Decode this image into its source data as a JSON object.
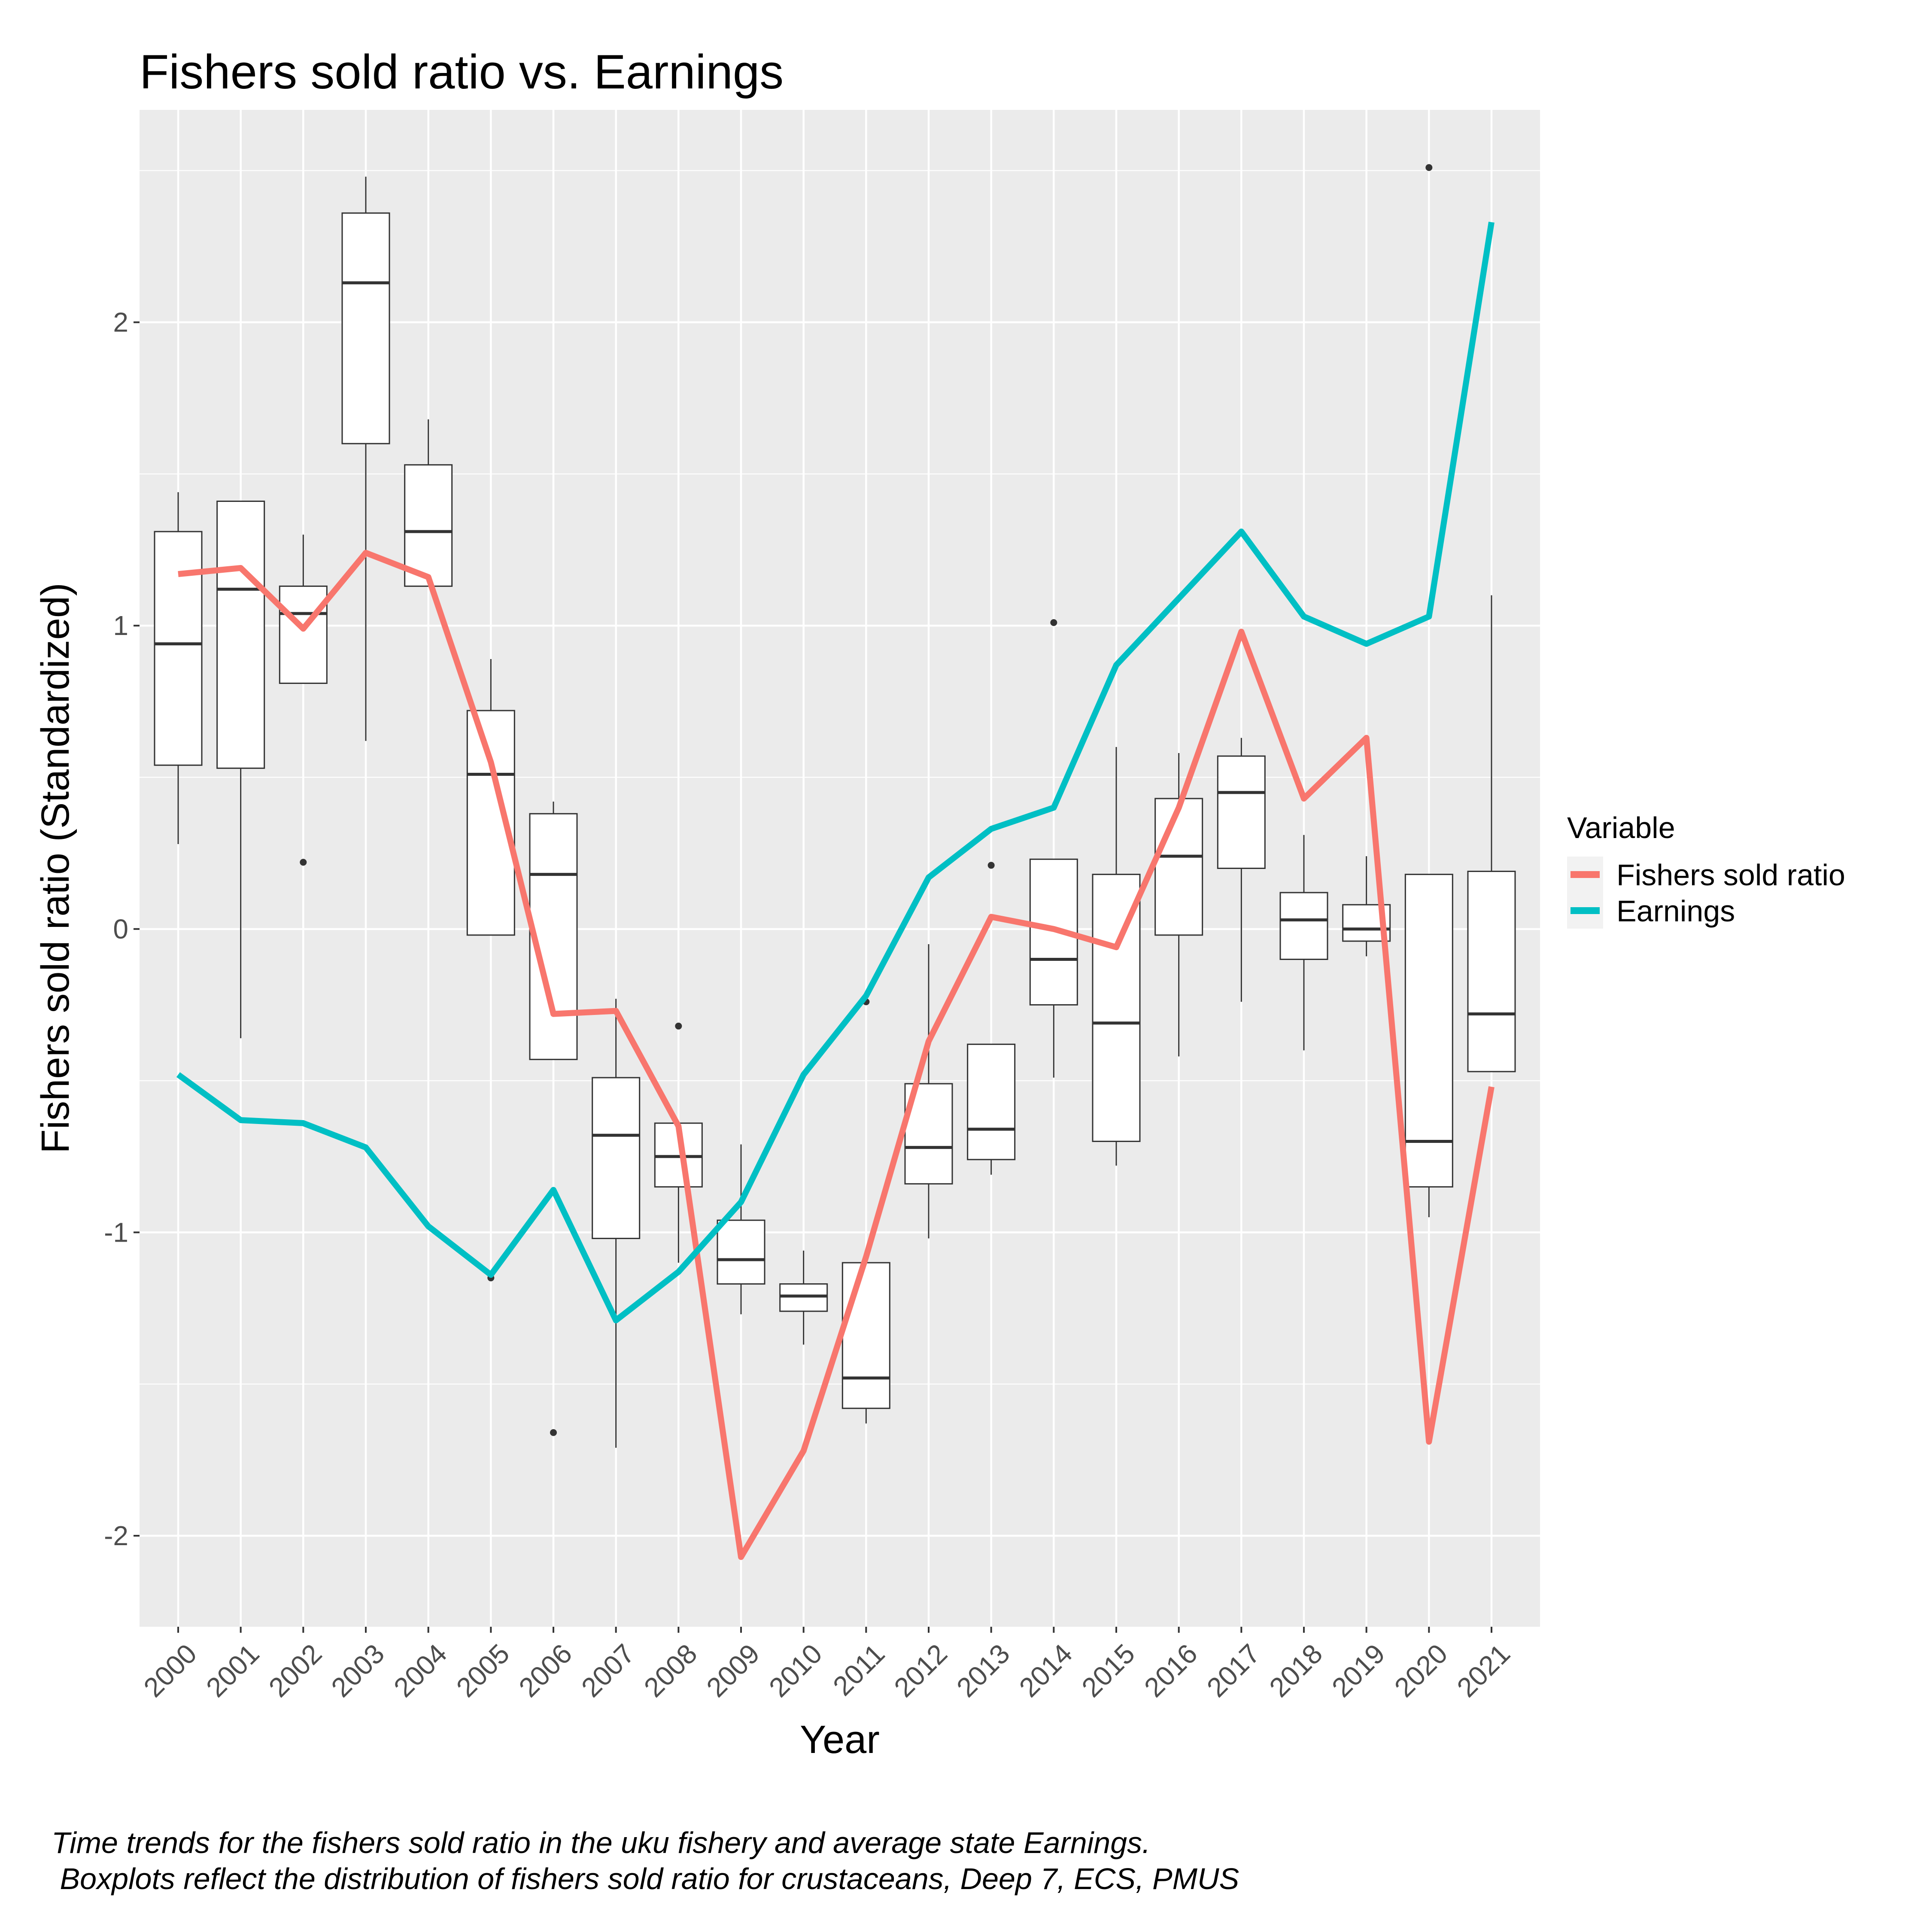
{
  "chart_data": {
    "type": "boxplot+line",
    "title": "Fishers sold ratio vs. Earnings",
    "xlabel": "Year",
    "ylabel": "Fishers sold ratio (Standardized)",
    "ylim": [
      -2.3,
      2.7
    ],
    "yticks": [
      -2,
      -1,
      0,
      1,
      2
    ],
    "ytick_labels": [
      "-2",
      "-1",
      "0",
      "1",
      "2"
    ],
    "categories": [
      "2000",
      "2001",
      "2002",
      "2003",
      "2004",
      "2005",
      "2006",
      "2007",
      "2008",
      "2009",
      "2010",
      "2011",
      "2012",
      "2013",
      "2014",
      "2015",
      "2016",
      "2017",
      "2018",
      "2019",
      "2020",
      "2021"
    ],
    "grid": true,
    "legend": {
      "title": "Variable",
      "placement": "right",
      "entries": [
        {
          "label": "Fishers sold ratio",
          "color": "#F8766D"
        },
        {
          "label": "Earnings",
          "color": "#00BFC4"
        }
      ]
    },
    "series": [
      {
        "name": "Fishers sold ratio",
        "color": "#F8766D",
        "values": [
          1.17,
          1.19,
          0.99,
          1.24,
          1.16,
          0.55,
          -0.28,
          -0.27,
          -0.65,
          -2.07,
          -1.72,
          -1.08,
          -0.37,
          0.04,
          0.0,
          -0.06,
          0.4,
          0.98,
          0.43,
          0.63,
          -1.69,
          -0.52
        ]
      },
      {
        "name": "Earnings",
        "color": "#00BFC4",
        "values": [
          -0.48,
          -0.63,
          -0.64,
          -0.72,
          -0.98,
          -1.14,
          -0.86,
          -1.29,
          -1.13,
          -0.9,
          -0.48,
          -0.22,
          0.17,
          0.33,
          0.4,
          0.87,
          1.09,
          1.31,
          1.03,
          0.94,
          1.03,
          2.33
        ]
      }
    ],
    "boxes": [
      {
        "year": "2000",
        "min": 0.28,
        "q1": 0.54,
        "median": 0.94,
        "q3": 1.31,
        "max": 1.44,
        "outliers": []
      },
      {
        "year": "2001",
        "min": -0.36,
        "q1": 0.53,
        "median": 1.12,
        "q3": 1.41,
        "max": 1.41,
        "outliers": []
      },
      {
        "year": "2002",
        "min": 0.81,
        "q1": 0.81,
        "median": 1.04,
        "q3": 1.13,
        "max": 1.3,
        "outliers": [
          0.22
        ]
      },
      {
        "year": "2003",
        "min": 0.62,
        "q1": 1.6,
        "median": 2.13,
        "q3": 2.36,
        "max": 2.48,
        "outliers": []
      },
      {
        "year": "2004",
        "min": 1.13,
        "q1": 1.13,
        "median": 1.31,
        "q3": 1.53,
        "max": 1.68,
        "outliers": []
      },
      {
        "year": "2005",
        "min": -0.02,
        "q1": -0.02,
        "median": 0.51,
        "q3": 0.72,
        "max": 0.89,
        "outliers": [
          -1.15
        ]
      },
      {
        "year": "2006",
        "min": -0.43,
        "q1": -0.43,
        "median": 0.18,
        "q3": 0.38,
        "max": 0.42,
        "outliers": [
          -1.66
        ]
      },
      {
        "year": "2007",
        "min": -1.71,
        "q1": -1.02,
        "median": -0.68,
        "q3": -0.49,
        "max": -0.23,
        "outliers": []
      },
      {
        "year": "2008",
        "min": -1.1,
        "q1": -0.85,
        "median": -0.75,
        "q3": -0.64,
        "max": -0.64,
        "outliers": [
          -0.32
        ]
      },
      {
        "year": "2009",
        "min": -1.27,
        "q1": -1.17,
        "median": -1.09,
        "q3": -0.96,
        "max": -0.71,
        "outliers": []
      },
      {
        "year": "2010",
        "min": -1.37,
        "q1": -1.26,
        "median": -1.21,
        "q3": -1.17,
        "max": -1.06,
        "outliers": []
      },
      {
        "year": "2011",
        "min": -1.63,
        "q1": -1.58,
        "median": -1.48,
        "q3": -1.1,
        "max": -1.1,
        "outliers": [
          -0.24
        ]
      },
      {
        "year": "2012",
        "min": -1.02,
        "q1": -0.84,
        "median": -0.72,
        "q3": -0.51,
        "max": -0.05,
        "outliers": []
      },
      {
        "year": "2013",
        "min": -0.81,
        "q1": -0.76,
        "median": -0.66,
        "q3": -0.38,
        "max": -0.38,
        "outliers": [
          0.21
        ]
      },
      {
        "year": "2014",
        "min": -0.49,
        "q1": -0.25,
        "median": -0.1,
        "q3": 0.23,
        "max": 0.23,
        "outliers": [
          1.01
        ]
      },
      {
        "year": "2015",
        "min": -0.78,
        "q1": -0.7,
        "median": -0.31,
        "q3": 0.18,
        "max": 0.6,
        "outliers": []
      },
      {
        "year": "2016",
        "min": -0.42,
        "q1": -0.02,
        "median": 0.24,
        "q3": 0.43,
        "max": 0.58,
        "outliers": []
      },
      {
        "year": "2017",
        "min": -0.24,
        "q1": 0.2,
        "median": 0.45,
        "q3": 0.57,
        "max": 0.63,
        "outliers": []
      },
      {
        "year": "2018",
        "min": -0.4,
        "q1": -0.1,
        "median": 0.03,
        "q3": 0.12,
        "max": 0.31,
        "outliers": []
      },
      {
        "year": "2019",
        "min": -0.09,
        "q1": -0.04,
        "median": 0.0,
        "q3": 0.08,
        "max": 0.24,
        "outliers": []
      },
      {
        "year": "2020",
        "min": -0.95,
        "q1": -0.85,
        "median": -0.7,
        "q3": 0.18,
        "max": 0.18,
        "outliers": [
          2.51
        ]
      },
      {
        "year": "2021",
        "min": -0.47,
        "q1": -0.47,
        "median": -0.28,
        "q3": 0.19,
        "max": 1.1,
        "outliers": []
      }
    ]
  },
  "caption": {
    "line1": "Time trends for the fishers sold ratio in the uku fishery and average state Earnings.",
    "line2": " Boxplots reflect the distribution of fishers sold ratio for crustaceans, Deep 7, ECS, PMUS"
  }
}
